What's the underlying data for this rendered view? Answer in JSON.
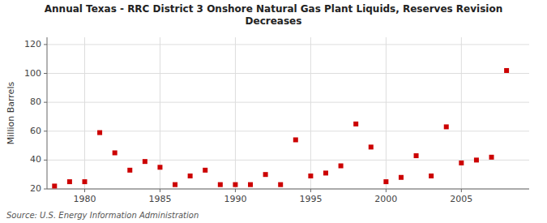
{
  "chart_data": {
    "type": "scatter",
    "title": "Annual Texas - RRC District 3 Onshore Natural Gas Plant Liquids, Reserves Revision\nDecreases",
    "ylabel": "Million Barrels",
    "annotations": [
      "Source: U.S. Energy Information Administration"
    ],
    "x": [
      1978,
      1979,
      1980,
      1981,
      1982,
      1983,
      1984,
      1985,
      1986,
      1987,
      1988,
      1989,
      1990,
      1991,
      1992,
      1993,
      1994,
      1995,
      1996,
      1997,
      1998,
      1999,
      2000,
      2001,
      2002,
      2003,
      2004,
      2005,
      2006,
      2007,
      2008
    ],
    "values": [
      22,
      25,
      25,
      59,
      45,
      33,
      39,
      35,
      23,
      29,
      33,
      23,
      23,
      23,
      30,
      23,
      54,
      29,
      31,
      36,
      65,
      49,
      25,
      28,
      43,
      29,
      63,
      38,
      40,
      42,
      102
    ],
    "color": "#cc0000",
    "marker": "square",
    "xlim": [
      1977.5,
      2009.5
    ],
    "ylim": [
      20,
      125
    ],
    "xticks": [
      1980,
      1985,
      1990,
      1995,
      2000,
      2005
    ],
    "yticks": [
      20,
      40,
      60,
      80,
      100,
      120
    ],
    "grid": true
  }
}
